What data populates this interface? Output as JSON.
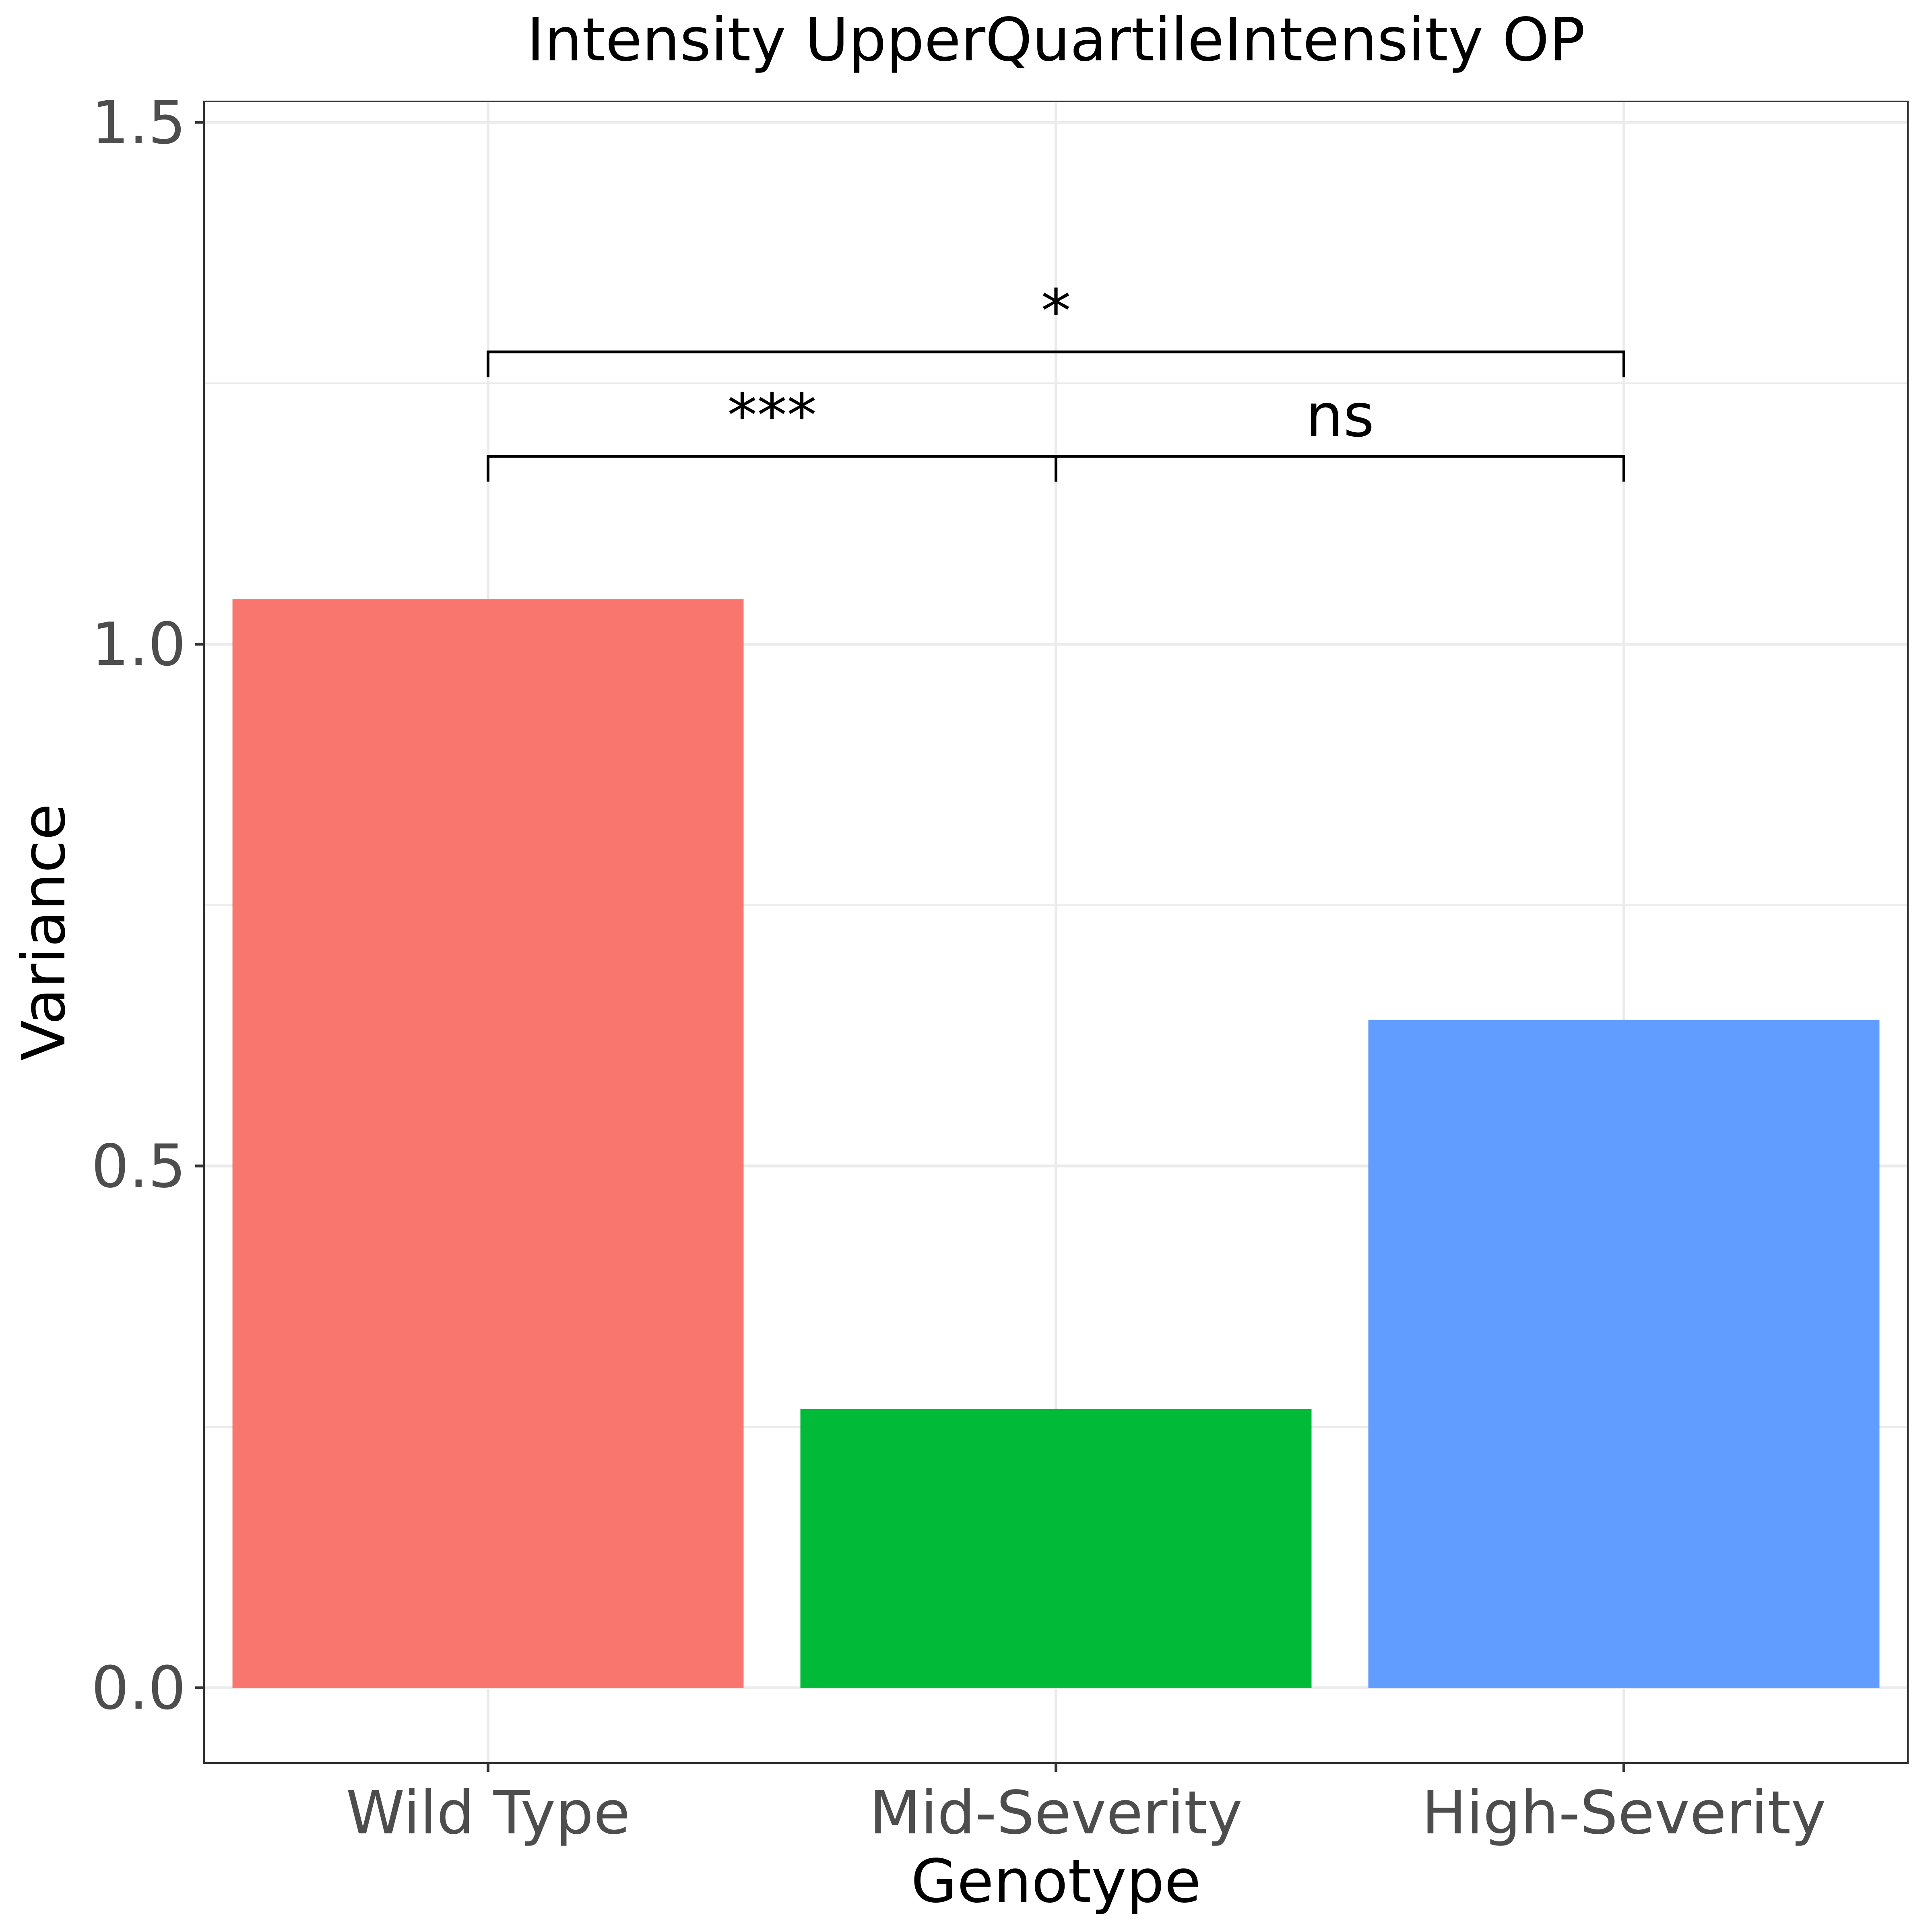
{
  "chart_data": {
    "type": "bar",
    "title": "Intensity UpperQuartileIntensity OP",
    "xlabel": "Genotype",
    "ylabel": "Variance",
    "categories": [
      "Wild Type",
      "Mid-Severity",
      "High-Severity"
    ],
    "values": [
      1.043,
      0.267,
      0.64
    ],
    "colors": [
      "#F8766D",
      "#00BA38",
      "#619CFF"
    ],
    "ylim": [
      -0.072,
      1.52
    ],
    "yticks": [
      0.0,
      0.5,
      1.0,
      1.5
    ],
    "ytick_labels": [
      "0.0",
      "0.5",
      "1.0",
      "1.5"
    ],
    "grid": true,
    "legend": "none",
    "significance": [
      {
        "from": "Wild Type",
        "to": "Mid-Severity",
        "y": 1.18,
        "label": "***"
      },
      {
        "from": "Mid-Severity",
        "to": "High-Severity",
        "y": 1.18,
        "label": "ns"
      },
      {
        "from": "Wild Type",
        "to": "High-Severity",
        "y": 1.28,
        "label": "*"
      }
    ]
  }
}
